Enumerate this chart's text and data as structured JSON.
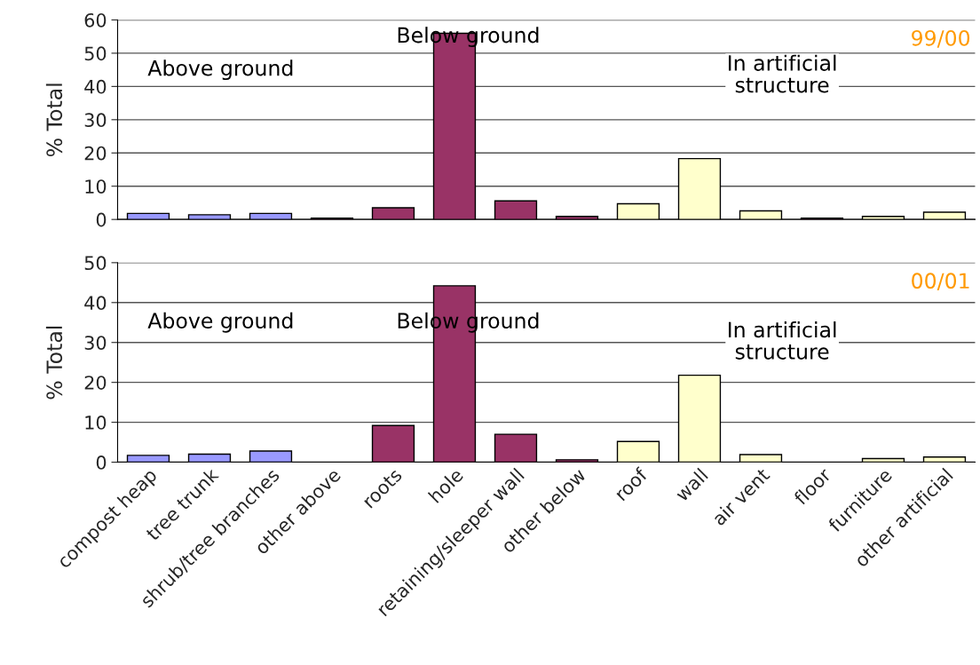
{
  "chart_data": [
    {
      "type": "bar",
      "ylabel": "% Total",
      "categories": [
        null,
        null,
        null,
        null,
        null,
        null,
        null,
        null,
        null,
        null,
        null,
        null,
        null,
        null
      ],
      "values": [
        1.8,
        1.4,
        1.8,
        0.4,
        3.5,
        56,
        5.6,
        0.9,
        4.7,
        18.3,
        2.6,
        0.4,
        0.9,
        2.2
      ],
      "colors": [
        "#9999ff",
        "#9999ff",
        "#9999ff",
        "#993366",
        "#993366",
        "#993366",
        "#993366",
        "#993366",
        "#ffffcc",
        "#ffffcc",
        "#ffffcc",
        "#993366",
        "#ffffcc",
        "#ffffcc"
      ],
      "ylim": [
        0,
        60
      ],
      "yticks": [
        0,
        10,
        20,
        30,
        40,
        50,
        60
      ],
      "grid": "y",
      "tick_labels": "y",
      "annotations": [
        "Above ground",
        "Below ground",
        "In artificial\nstructure",
        "99/00"
      ]
    },
    {
      "type": "bar",
      "ylabel": "% Total",
      "categories": [
        "compost heap",
        "tree trunk",
        "shrub/tree branches",
        "other above",
        "roots",
        "hole",
        "retaining/sleeper wall",
        "other below",
        "roof",
        "wall",
        "air vent",
        "floor",
        "furniture",
        "other artificial"
      ],
      "values": [
        1.7,
        2.0,
        2.8,
        0,
        9.2,
        44.2,
        7.0,
        0.6,
        5.2,
        21.8,
        1.9,
        0,
        0.9,
        1.3
      ],
      "colors": [
        "#9999ff",
        "#9999ff",
        "#9999ff",
        "#9999ff",
        "#993366",
        "#993366",
        "#993366",
        "#993366",
        "#ffffcc",
        "#ffffcc",
        "#ffffcc",
        "#ffffcc",
        "#ffffcc",
        "#ffffcc"
      ],
      "ylim": [
        0,
        50
      ],
      "yticks": [
        0,
        10,
        20,
        30,
        40,
        50
      ],
      "grid": "y",
      "annotations": [
        "Above ground",
        "Below ground",
        "In artificial\nstructure",
        "00/01"
      ]
    }
  ]
}
